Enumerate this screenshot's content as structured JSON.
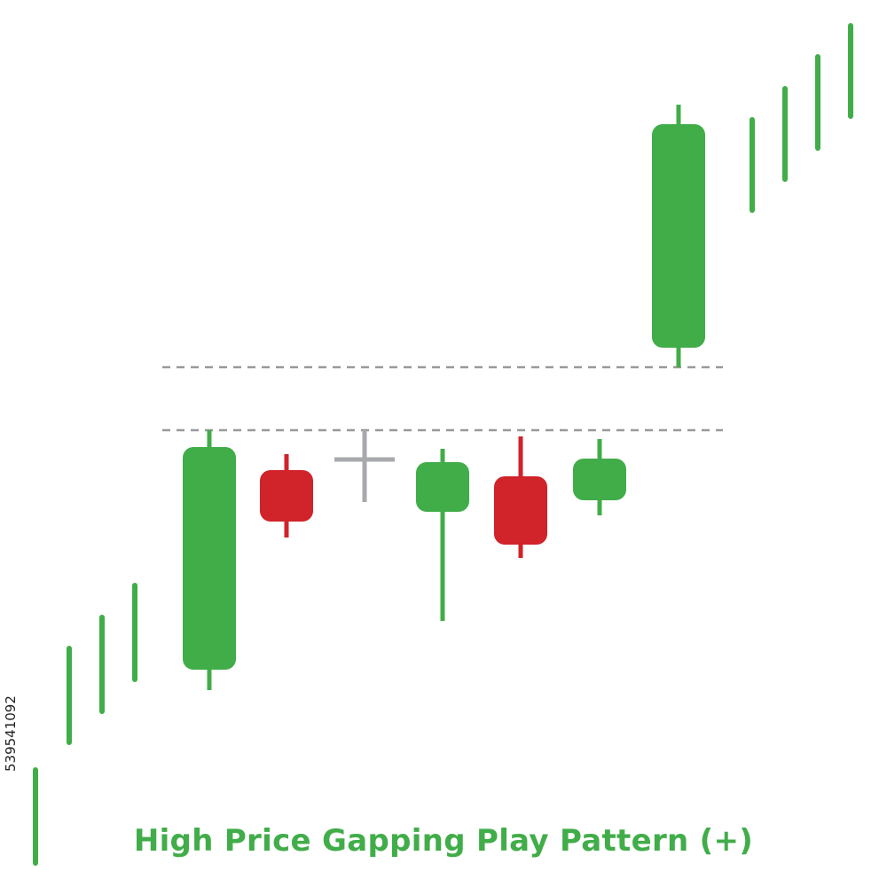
{
  "title": "High Price Gapping Play Pattern (+)",
  "stock_id": "539541092",
  "colors": {
    "bullish": "#41ad49",
    "bearish": "#d0232a",
    "doji": "#a7a9ac",
    "reference_line": "#999999",
    "title": "#41ad49"
  },
  "chart_data": {
    "type": "candlestick",
    "title": "High Price Gapping Play Pattern (+)",
    "xlabel": "",
    "ylabel": "",
    "ylim": [
      0,
      100
    ],
    "grid": false,
    "candles": [
      {
        "kind": "bar",
        "color": "bullish",
        "high": 13.2,
        "low": 2.7
      },
      {
        "kind": "bar",
        "color": "bullish",
        "high": 26.9,
        "low": 16.3
      },
      {
        "kind": "bar",
        "color": "bullish",
        "high": 30.4,
        "low": 19.8
      },
      {
        "kind": "bar",
        "color": "bullish",
        "high": 34.0,
        "low": 23.4
      },
      {
        "kind": "body",
        "color": "bullish",
        "open": 24.5,
        "close": 49.6,
        "high": 51.5,
        "low": 22.2
      },
      {
        "kind": "body",
        "color": "bearish",
        "open": 47.0,
        "close": 41.2,
        "high": 48.8,
        "low": 39.4
      },
      {
        "kind": "doji",
        "color": "doji",
        "open": 48.2,
        "close": 48.2,
        "high": 51.5,
        "low": 43.4
      },
      {
        "kind": "body",
        "color": "bullish",
        "open": 42.3,
        "close": 47.9,
        "high": 49.4,
        "low": 30.0
      },
      {
        "kind": "body",
        "color": "bearish",
        "open": 46.3,
        "close": 38.6,
        "high": 50.8,
        "low": 37.1
      },
      {
        "kind": "body",
        "color": "bullish",
        "open": 43.6,
        "close": 48.3,
        "high": 50.5,
        "low": 41.9
      },
      {
        "kind": "body",
        "color": "bullish",
        "open": 60.8,
        "close": 86.0,
        "high": 88.2,
        "low": 58.6
      },
      {
        "kind": "bar",
        "color": "bullish",
        "high": 86.5,
        "low": 76.3
      },
      {
        "kind": "bar",
        "color": "bullish",
        "high": 90.0,
        "low": 79.8
      },
      {
        "kind": "bar",
        "color": "bullish",
        "high": 93.6,
        "low": 83.3
      },
      {
        "kind": "bar",
        "color": "bullish",
        "high": 97.1,
        "low": 86.9
      }
    ],
    "reference_levels": [
      {
        "name": "gap-top",
        "value": 58.6
      },
      {
        "name": "consolidation-high",
        "value": 51.5
      }
    ]
  }
}
